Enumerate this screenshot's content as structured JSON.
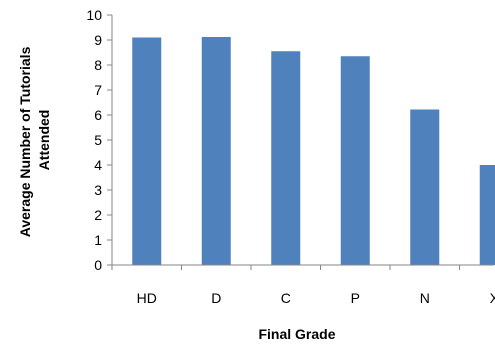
{
  "chart_data": {
    "type": "bar",
    "title": "",
    "xlabel": "Final Grade",
    "ylabel_lines": [
      "Average Number of Tutorials",
      "Attended"
    ],
    "categories": [
      "HD",
      "D",
      "C",
      "P",
      "N",
      "X"
    ],
    "values": [
      9.1,
      9.12,
      8.55,
      8.35,
      6.22,
      4.0
    ],
    "ylim": [
      0,
      10
    ],
    "yticks": [
      "0",
      "1",
      "2",
      "3",
      "4",
      "5",
      "6",
      "7",
      "8",
      "9",
      "10"
    ],
    "grid": false,
    "legend": "none",
    "colors": {
      "bar": "#4F81BD",
      "axis": "#868686"
    }
  }
}
